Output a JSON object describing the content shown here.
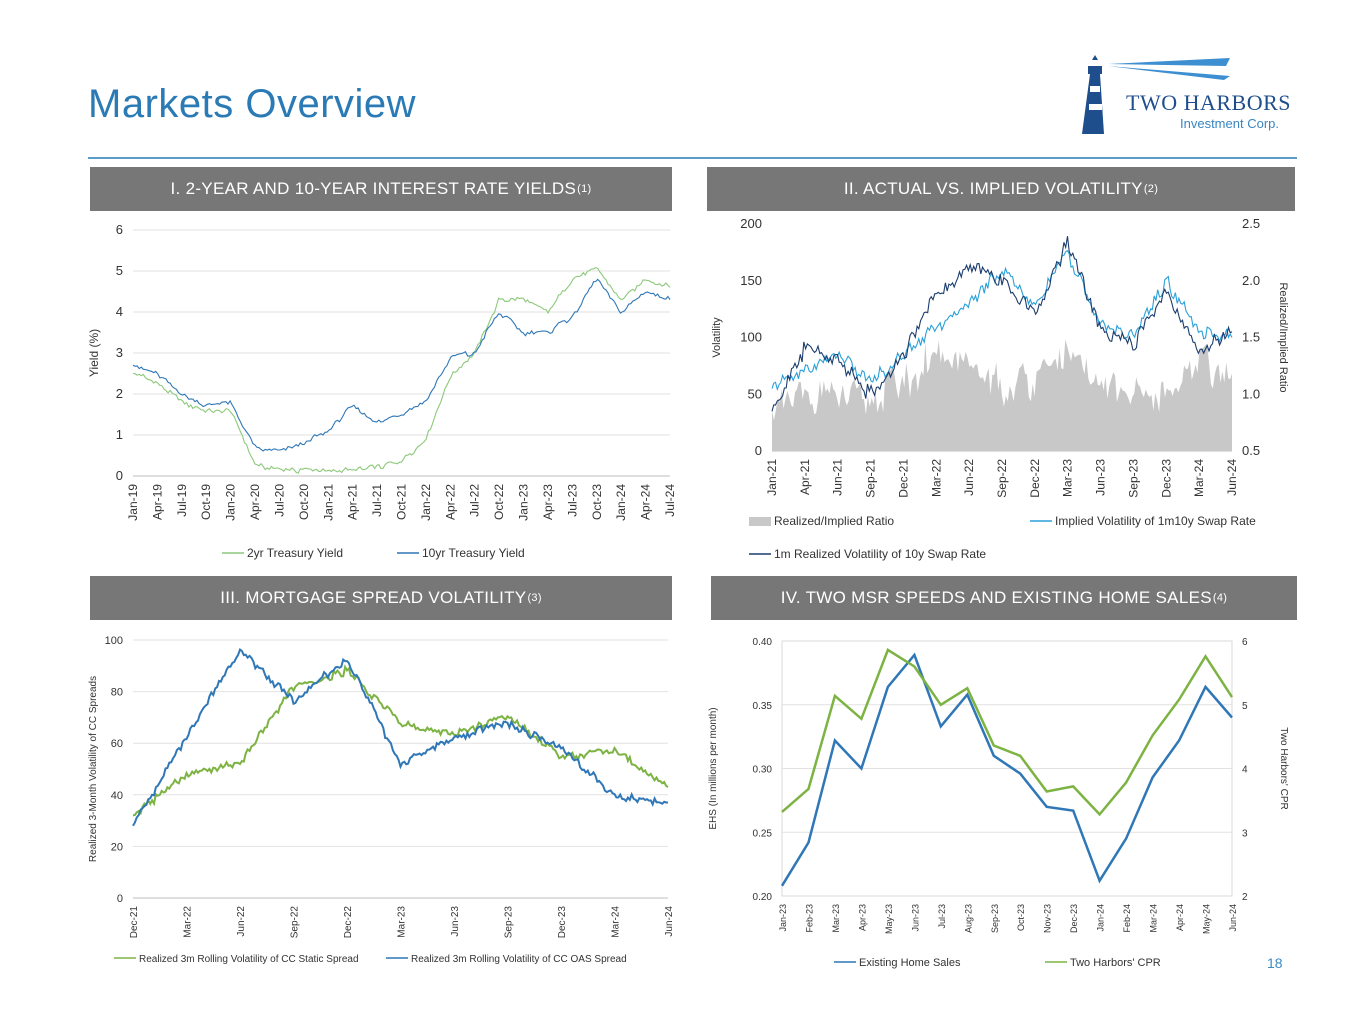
{
  "page": {
    "title": "Markets Overview",
    "page_number": "18"
  },
  "logo": {
    "name": "TWO HARBORS",
    "sub": "Investment Corp."
  },
  "colors": {
    "title": "#2a7ab5",
    "header_bg": "#777777",
    "green": "#7cbf5f",
    "blue": "#2f77b6",
    "lightblue": "#2aa0d8",
    "navy": "#1b3d6e",
    "gray_area": "#c8c8c8"
  },
  "panels": [
    {
      "title": "I. 2-YEAR AND 10-YEAR INTEREST RATE YIELDS",
      "note": "(1)"
    },
    {
      "title": "II. ACTUAL VS. IMPLIED VOLATILITY",
      "note": "(2)"
    },
    {
      "title": "III. MORTGAGE SPREAD VOLATILITY",
      "note": "(3)"
    },
    {
      "title": "IV. TWO MSR SPEEDS AND EXISTING HOME SALES",
      "note": "(4)"
    }
  ],
  "chart_data": [
    {
      "type": "line",
      "title": "I. 2-YEAR AND 10-YEAR INTEREST RATE YIELDS",
      "ylabel": "Yield (%)",
      "ylim": [
        0,
        6
      ],
      "yticks": [
        "0",
        "1",
        "2",
        "3",
        "4",
        "5",
        "6"
      ],
      "categories": [
        "Jan-19",
        "Apr-19",
        "Jul-19",
        "Oct-19",
        "Jan-20",
        "Apr-20",
        "Jul-20",
        "Oct-20",
        "Jan-21",
        "Apr-21",
        "Jul-21",
        "Oct-21",
        "Jan-22",
        "Apr-22",
        "Jul-22",
        "Oct-22",
        "Jan-23",
        "Apr-23",
        "Jul-23",
        "Oct-23",
        "Jan-24",
        "Apr-24",
        "Jul-24"
      ],
      "series": [
        {
          "name": "2yr Treasury Yield",
          "color": "#8cc97a",
          "values": [
            2.5,
            2.3,
            1.8,
            1.6,
            1.6,
            0.25,
            0.15,
            0.14,
            0.12,
            0.16,
            0.22,
            0.35,
            0.9,
            2.4,
            3.0,
            4.3,
            4.3,
            4.0,
            4.8,
            5.1,
            4.3,
            4.8,
            4.6
          ]
        },
        {
          "name": "10yr Treasury Yield",
          "color": "#2f77b6",
          "values": [
            2.7,
            2.5,
            2.0,
            1.7,
            1.8,
            0.7,
            0.6,
            0.8,
            1.1,
            1.7,
            1.3,
            1.5,
            1.8,
            2.9,
            3.0,
            4.0,
            3.5,
            3.5,
            3.9,
            4.8,
            4.0,
            4.5,
            4.3
          ]
        }
      ]
    },
    {
      "type": "line",
      "title": "II. ACTUAL VS. IMPLIED VOLATILITY",
      "ylabel": "Volatility",
      "y2label": "Realized/Implied Ratio",
      "ylim": [
        0,
        200
      ],
      "y2lim": [
        0.5,
        2.5
      ],
      "yticks": [
        "0",
        "50",
        "100",
        "150",
        "200"
      ],
      "y2ticks": [
        "0.5",
        "1.0",
        "1.5",
        "2.0",
        "2.5"
      ],
      "categories": [
        "Jan-21",
        "Apr-21",
        "Jun-21",
        "Sep-21",
        "Dec-21",
        "Mar-22",
        "Jun-22",
        "Sep-22",
        "Dec-22",
        "Mar-23",
        "Jun-23",
        "Sep-23",
        "Dec-23",
        "Mar-24",
        "Jun-24"
      ],
      "series": [
        {
          "name": "Realized/Implied Ratio",
          "axis": "right",
          "kind": "area",
          "color": "#c8c8c8",
          "values": [
            0.8,
            0.95,
            0.9,
            0.95,
            1.0,
            1.3,
            1.15,
            1.0,
            1.1,
            1.3,
            1.0,
            1.0,
            0.9,
            1.2,
            1.1
          ]
        },
        {
          "name": "Implied Volatility of 1m10y Swap Rate",
          "color": "#2aa0d8",
          "values": [
            55,
            72,
            85,
            60,
            85,
            110,
            130,
            160,
            130,
            175,
            110,
            100,
            150,
            105,
            100
          ]
        },
        {
          "name": "1m Realized Volatility of 10y Swap Rate",
          "color": "#1b3d6e",
          "values": [
            35,
            90,
            80,
            50,
            85,
            140,
            160,
            150,
            120,
            185,
            105,
            95,
            140,
            90,
            105
          ]
        }
      ]
    },
    {
      "type": "line",
      "title": "III. MORTGAGE SPREAD VOLATILITY",
      "ylabel": "Realized 3-Month Volatility of CC Spreads",
      "ylim": [
        0,
        100
      ],
      "yticks": [
        "0",
        "20",
        "40",
        "60",
        "80",
        "100"
      ],
      "categories": [
        "Dec-21",
        "Mar-22",
        "Jun-22",
        "Sep-22",
        "Dec-22",
        "Mar-23",
        "Jun-23",
        "Sep-23",
        "Dec-23",
        "Mar-24",
        "Jun-24"
      ],
      "series": [
        {
          "name": "Realized 3m Rolling Volatility of CC Static Spread",
          "color": "#7cb342",
          "values": [
            32,
            48,
            52,
            82,
            88,
            68,
            64,
            70,
            55,
            57,
            43
          ]
        },
        {
          "name": "Realized 3m Rolling Volatility of CC OAS Spread",
          "color": "#2f77b6",
          "values": [
            28,
            62,
            96,
            76,
            93,
            52,
            62,
            68,
            58,
            40,
            37
          ]
        }
      ]
    },
    {
      "type": "line",
      "title": "IV. TWO MSR SPEEDS AND EXISTING HOME SALES",
      "ylabel": "EHS (In millions per month)",
      "y2label": "Two Harbors' CPR",
      "ylim": [
        0.2,
        0.4
      ],
      "y2lim": [
        2,
        6
      ],
      "yticks": [
        "0.20",
        "0.25",
        "0.30",
        "0.35",
        "0.40"
      ],
      "y2ticks": [
        "2",
        "3",
        "4",
        "5",
        "6"
      ],
      "categories": [
        "Jan-23",
        "Feb-23",
        "Mar-23",
        "Apr-23",
        "May-23",
        "Jun-23",
        "Jul-23",
        "Aug-23",
        "Sep-23",
        "Oct-23",
        "Nov-23",
        "Dec-23",
        "Jan-24",
        "Feb-24",
        "Mar-24",
        "Apr-24",
        "May-24",
        "Jun-24"
      ],
      "series": [
        {
          "name": "Existing Home Sales",
          "axis": "left",
          "color": "#2f77b6",
          "values": [
            0.208,
            0.242,
            0.322,
            0.3,
            0.364,
            0.389,
            0.333,
            0.358,
            0.31,
            0.296,
            0.27,
            0.267,
            0.212,
            0.245,
            0.293,
            0.322,
            0.364,
            0.34
          ]
        },
        {
          "name": "Two Harbors' CPR",
          "axis": "right",
          "color": "#7cb342",
          "values": [
            3.32,
            3.68,
            5.14,
            4.78,
            5.86,
            5.6,
            5.0,
            5.26,
            4.36,
            4.2,
            3.64,
            3.72,
            3.28,
            3.78,
            4.52,
            5.08,
            5.76,
            5.12
          ]
        }
      ]
    }
  ]
}
